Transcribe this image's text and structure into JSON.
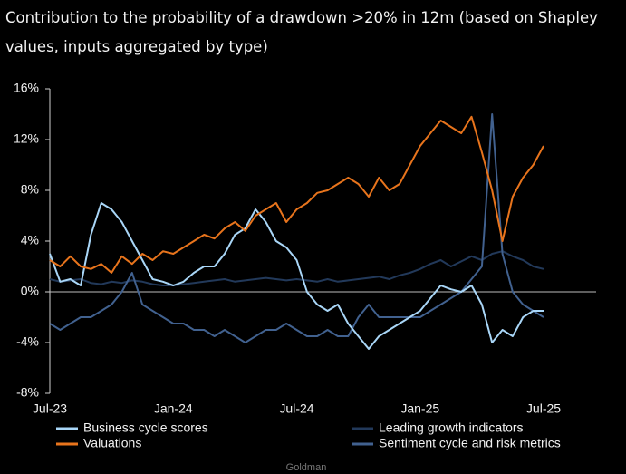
{
  "chart_data": {
    "type": "line",
    "title": "Contribution to the probability of a drawdown >20% in 12m (based on Shapley values, inputs aggregated by type)",
    "source": "Goldman",
    "categories": [
      "Jul-23",
      null,
      null,
      null,
      null,
      null,
      null,
      null,
      null,
      null,
      null,
      null,
      "Jan-24",
      null,
      null,
      null,
      null,
      null,
      null,
      null,
      null,
      null,
      null,
      null,
      "Jul-24",
      null,
      null,
      null,
      null,
      null,
      null,
      null,
      null,
      null,
      null,
      null,
      "Jan-25",
      null,
      null,
      null,
      null,
      null,
      null,
      null,
      null,
      null,
      null,
      null,
      "Jul-25"
    ],
    "ylim": [
      -8,
      16
    ],
    "yticks": [
      {
        "value": -8,
        "label": "-8%"
      },
      {
        "value": -4,
        "label": "-4%"
      },
      {
        "value": 0,
        "label": "0%"
      },
      {
        "value": 4,
        "label": "4%"
      },
      {
        "value": 8,
        "label": "8%"
      },
      {
        "value": 12,
        "label": "12%"
      },
      {
        "value": 16,
        "label": "16%"
      }
    ],
    "series": [
      {
        "name": "Business cycle scores",
        "color": "#a9d6f7",
        "values": [
          3.0,
          0.8,
          1.0,
          0.5,
          4.5,
          7.0,
          6.5,
          5.5,
          4.0,
          2.5,
          1.0,
          0.8,
          0.5,
          0.8,
          1.5,
          2.0,
          2.0,
          3.0,
          4.5,
          5.0,
          6.5,
          5.5,
          4.0,
          3.5,
          2.5,
          0.0,
          -1.0,
          -1.5,
          -1.0,
          -2.5,
          -3.5,
          -4.5,
          -3.5,
          -3.0,
          -2.5,
          -2.0,
          -1.5,
          -0.5,
          0.5,
          0.2,
          0.0,
          0.5,
          -1.0,
          -4.0,
          -3.0,
          -3.5,
          -2.0,
          -1.5,
          -1.5
        ]
      },
      {
        "name": "Leading growth indicators",
        "color": "#22395a",
        "values": [
          1.0,
          0.8,
          0.9,
          1.0,
          0.7,
          0.6,
          0.8,
          0.7,
          0.9,
          0.8,
          0.6,
          0.5,
          0.5,
          0.6,
          0.7,
          0.8,
          0.9,
          1.0,
          0.8,
          0.9,
          1.0,
          1.1,
          1.0,
          0.9,
          1.0,
          0.9,
          0.8,
          1.0,
          0.8,
          0.9,
          1.0,
          1.1,
          1.2,
          1.0,
          1.3,
          1.5,
          1.8,
          2.2,
          2.5,
          2.0,
          2.4,
          2.8,
          2.5,
          3.0,
          3.2,
          2.8,
          2.5,
          2.0,
          1.8
        ]
      },
      {
        "name": "Valuations",
        "color": "#e8741c",
        "values": [
          2.5,
          2.0,
          2.8,
          2.0,
          1.8,
          2.2,
          1.5,
          2.8,
          2.2,
          3.0,
          2.5,
          3.2,
          3.0,
          3.5,
          4.0,
          4.5,
          4.2,
          5.0,
          5.5,
          4.8,
          6.0,
          6.5,
          7.0,
          5.5,
          6.5,
          7.0,
          7.8,
          8.0,
          8.5,
          9.0,
          8.5,
          7.5,
          9.0,
          8.0,
          8.5,
          10.0,
          11.5,
          12.5,
          13.5,
          13.0,
          12.5,
          13.8,
          11.0,
          8.0,
          4.0,
          7.5,
          9.0,
          10.0,
          11.5
        ]
      },
      {
        "name": "Sentiment cycle and risk metrics",
        "color": "#41618f",
        "values": [
          -2.5,
          -3.0,
          -2.5,
          -2.0,
          -2.0,
          -1.5,
          -1.0,
          0.0,
          1.5,
          -1.0,
          -1.5,
          -2.0,
          -2.5,
          -2.5,
          -3.0,
          -3.0,
          -3.5,
          -3.0,
          -3.5,
          -4.0,
          -3.5,
          -3.0,
          -3.0,
          -2.5,
          -3.0,
          -3.5,
          -3.5,
          -3.0,
          -3.5,
          -3.5,
          -2.0,
          -1.0,
          -2.0,
          -2.0,
          -2.0,
          -2.0,
          -2.0,
          -1.5,
          -1.0,
          -0.5,
          0.0,
          1.0,
          2.0,
          14.0,
          3.0,
          0.0,
          -1.0,
          -1.5,
          -2.0
        ]
      }
    ]
  }
}
